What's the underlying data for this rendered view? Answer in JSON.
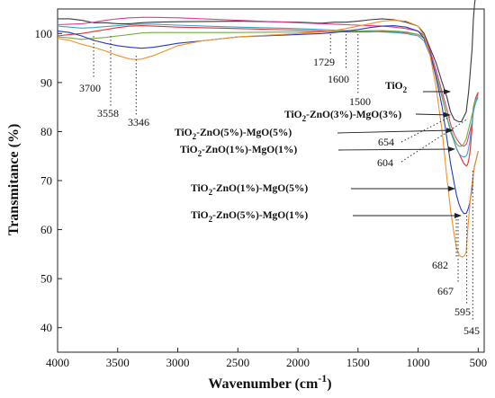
{
  "chart_data": {
    "type": "line",
    "xlabel": "Wavenumber (cm",
    "xlabel_sup": "-1",
    "xlabel_close": ")",
    "ylabel": "Transmitance (%)",
    "xlim": [
      4000,
      450
    ],
    "ylim": [
      35,
      105
    ],
    "x_reversed": true,
    "x_ticks": [
      4000,
      3500,
      3000,
      2500,
      2000,
      1500,
      1000,
      500
    ],
    "y_ticks": [
      40,
      50,
      60,
      70,
      80,
      90,
      100
    ],
    "grid": false,
    "legend": "none",
    "series": [
      {
        "color": "#3a3a3a",
        "x": [
          4000,
          3900,
          3800,
          3700,
          3600,
          3500,
          3400,
          3300,
          3200,
          3000,
          2500,
          2000,
          1800,
          1700,
          1600,
          1500,
          1400,
          1300,
          1200,
          1100,
          1000,
          950,
          900,
          850,
          800,
          760,
          730,
          700,
          680,
          660,
          640,
          620,
          600,
          590,
          580,
          570,
          560,
          550,
          545,
          540,
          530,
          520,
          510,
          500
        ],
        "y": [
          103,
          103,
          102.7,
          102.2,
          102.2,
          102,
          102,
          102.2,
          102.3,
          102.4,
          102.5,
          102.3,
          102.1,
          102.3,
          102.3,
          102.5,
          102.8,
          103,
          102.8,
          102.3,
          101.5,
          100,
          97,
          94,
          90,
          87,
          84,
          82.5,
          82.2,
          82,
          82,
          83,
          84,
          86,
          88,
          91,
          94,
          97,
          100,
          103,
          106,
          108,
          109,
          110
        ]
      },
      {
        "color": "#d94090",
        "x": [
          4000,
          3900,
          3800,
          3700,
          3600,
          3500,
          3400,
          3300,
          3200,
          3000,
          2500,
          2000,
          1800,
          1700,
          1600,
          1500,
          1400,
          1300,
          1200,
          1100,
          1000,
          950,
          900,
          850,
          800,
          760,
          730,
          700,
          680,
          660,
          640,
          620,
          600,
          590,
          580,
          570,
          560,
          550,
          545,
          540,
          530,
          520,
          510,
          500
        ],
        "y": [
          101.8,
          101.9,
          102,
          102.3,
          102.7,
          103,
          103.2,
          103.3,
          103.3,
          103.2,
          102.7,
          102.2,
          102,
          101.9,
          101.8,
          101.7,
          101.6,
          101.5,
          101.3,
          101,
          100.5,
          99.5,
          96.5,
          92.5,
          88,
          84.5,
          81.5,
          79.5,
          78.5,
          77.8,
          77.2,
          77,
          77.4,
          78,
          79,
          80,
          81,
          82,
          82.8,
          84,
          86,
          87,
          87.5,
          88
        ]
      },
      {
        "color": "#e83030",
        "x": [
          4000,
          3900,
          3800,
          3700,
          3600,
          3500,
          3400,
          3300,
          3200,
          3000,
          2500,
          2000,
          1800,
          1700,
          1600,
          1500,
          1400,
          1300,
          1200,
          1100,
          1000,
          950,
          900,
          850,
          800,
          760,
          730,
          700,
          680,
          660,
          640,
          620,
          600,
          590,
          580,
          570,
          560,
          550,
          545,
          540,
          530,
          520,
          510,
          500
        ],
        "y": [
          99.5,
          99.8,
          100,
          100.4,
          100.8,
          101.2,
          101.5,
          101.6,
          101.5,
          101.3,
          101,
          100.7,
          100.5,
          100.4,
          100.3,
          100.3,
          100.3,
          100.4,
          100.4,
          100.2,
          99.8,
          99,
          96,
          91.5,
          87,
          83,
          80,
          78,
          76.5,
          75.5,
          74.5,
          73.5,
          73,
          73.2,
          74,
          75.5,
          78,
          81,
          83.5,
          85,
          86,
          86.5,
          87,
          88
        ]
      },
      {
        "color": "#3aa0d0",
        "x": [
          4000,
          3900,
          3800,
          3700,
          3600,
          3500,
          3400,
          3300,
          3200,
          3000,
          2500,
          2000,
          1800,
          1700,
          1600,
          1500,
          1400,
          1300,
          1200,
          1100,
          1000,
          950,
          900,
          850,
          800,
          760,
          730,
          700,
          680,
          660,
          640,
          620,
          600,
          590,
          580,
          570,
          560,
          550,
          545,
          540,
          530,
          520,
          510,
          500
        ],
        "y": [
          101.5,
          101.3,
          101.1,
          101.2,
          101.4,
          101.6,
          101.8,
          101.9,
          101.9,
          101.7,
          101.3,
          101,
          100.8,
          100.7,
          100.6,
          100.5,
          100.4,
          100.3,
          100.2,
          100,
          99.5,
          98.5,
          95.5,
          91.5,
          87,
          83,
          80,
          78,
          76.5,
          75.5,
          75,
          74.8,
          75,
          75.5,
          76.5,
          78,
          80,
          82,
          83,
          84,
          85,
          86,
          86.5,
          87
        ]
      },
      {
        "color": "#70b040",
        "x": [
          4000,
          3900,
          3800,
          3700,
          3600,
          3500,
          3400,
          3300,
          3200,
          3000,
          2500,
          2000,
          1800,
          1700,
          1600,
          1500,
          1400,
          1300,
          1200,
          1100,
          1000,
          950,
          900,
          850,
          800,
          760,
          730,
          700,
          680,
          660,
          640,
          620,
          600,
          590,
          580,
          570,
          560,
          550,
          545,
          540,
          530,
          520,
          510,
          500
        ],
        "y": [
          99.3,
          99.1,
          98.8,
          99,
          99.2,
          99.5,
          99.8,
          100.1,
          100.2,
          100.2,
          100.2,
          100.3,
          100.3,
          100.4,
          100.5,
          100.5,
          100.6,
          100.6,
          100.5,
          100.3,
          99.8,
          99,
          96,
          91.5,
          87,
          83,
          80.5,
          78.5,
          77.5,
          77,
          77,
          77.5,
          78.5,
          79.5,
          80.5,
          81.5,
          82.5,
          83.5,
          84,
          85,
          86,
          86.5,
          87,
          87.5
        ]
      },
      {
        "color": "#2a3ab8",
        "x": [
          4000,
          3900,
          3800,
          3700,
          3600,
          3500,
          3400,
          3300,
          3200,
          3100,
          3000,
          2800,
          2500,
          2000,
          1800,
          1700,
          1600,
          1500,
          1400,
          1300,
          1200,
          1100,
          1000,
          950,
          900,
          850,
          800,
          760,
          730,
          700,
          680,
          660,
          640,
          620,
          600,
          590,
          580,
          570,
          560,
          550,
          545,
          540,
          530,
          520,
          510,
          500
        ],
        "y": [
          100.5,
          100.2,
          99.5,
          98.6,
          98,
          97.5,
          97.2,
          97,
          97.2,
          97.6,
          98,
          98.5,
          99.3,
          99.8,
          100,
          100.2,
          100.5,
          100.8,
          101.2,
          101.5,
          101.6,
          101.3,
          100.5,
          99,
          96,
          91,
          85,
          78.5,
          73.5,
          69.5,
          67,
          65.2,
          64,
          63.3,
          63.3,
          63.8,
          64.5,
          65.5,
          67,
          68.5,
          70,
          71.5,
          73,
          74,
          75,
          76
        ]
      },
      {
        "color": "#f0922a",
        "x": [
          4000,
          3900,
          3800,
          3700,
          3600,
          3500,
          3400,
          3346,
          3300,
          3200,
          3100,
          3000,
          2800,
          2500,
          2000,
          1800,
          1700,
          1600,
          1500,
          1400,
          1300,
          1200,
          1100,
          1000,
          950,
          900,
          850,
          800,
          760,
          730,
          700,
          682,
          667,
          650,
          630,
          610,
          600,
          595,
          590,
          580,
          570,
          560,
          550,
          545,
          540,
          530,
          520,
          510,
          500
        ],
        "y": [
          99,
          98.6,
          97.8,
          97.2,
          96.4,
          95.5,
          94.8,
          94.7,
          94.8,
          95.5,
          96.5,
          97.5,
          98.5,
          99.3,
          100,
          100.3,
          100.6,
          101,
          101.5,
          102,
          102.5,
          102.7,
          102.5,
          101.5,
          99.5,
          95.5,
          89,
          80,
          70.5,
          64,
          59,
          56.5,
          55.2,
          54.6,
          54.4,
          54.8,
          55.5,
          57,
          59,
          62,
          65,
          67.5,
          69.5,
          70.5,
          71.5,
          73,
          74,
          75,
          76
        ]
      }
    ],
    "annotations": {
      "peaks": [
        {
          "text": "3700",
          "x": 3700
        },
        {
          "text": "3558",
          "x": 3558
        },
        {
          "text": "3346",
          "x": 3346
        },
        {
          "text": "1729",
          "x": 1729
        },
        {
          "text": "1600",
          "x": 1600
        },
        {
          "text": "1500",
          "x": 1500
        },
        {
          "text": "654",
          "x": 654
        },
        {
          "text": "604",
          "x": 604
        },
        {
          "text": "682",
          "x": 682
        },
        {
          "text": "667",
          "x": 667
        },
        {
          "text": "595",
          "x": 595
        },
        {
          "text": "545",
          "x": 545
        }
      ],
      "samples": [
        {
          "main": "TiO",
          "sub": "2",
          "rest": "",
          "target_x": 590,
          "target_y": 95
        },
        {
          "main": "TiO",
          "sub": "2",
          "rest": "-ZnO(3%)-MgO(3%)",
          "target_x": 650,
          "target_y": 82
        },
        {
          "main": "TiO",
          "sub": "2",
          "rest": "-ZnO(5%)-MgO(5%)",
          "target_x": 650,
          "target_y": 79
        },
        {
          "main": "TiO",
          "sub": "2",
          "rest": "-ZnO(1%)-MgO(1%)",
          "target_x": 640,
          "target_y": 75
        },
        {
          "main": "TiO",
          "sub": "2",
          "rest": "-ZnO(1%)-MgO(5%)",
          "target_x": 640,
          "target_y": 68
        },
        {
          "main": "TiO",
          "sub": "2",
          "rest": "-ZnO(5%)-MgO(1%)",
          "target_x": 640,
          "target_y": 63
        }
      ]
    }
  }
}
